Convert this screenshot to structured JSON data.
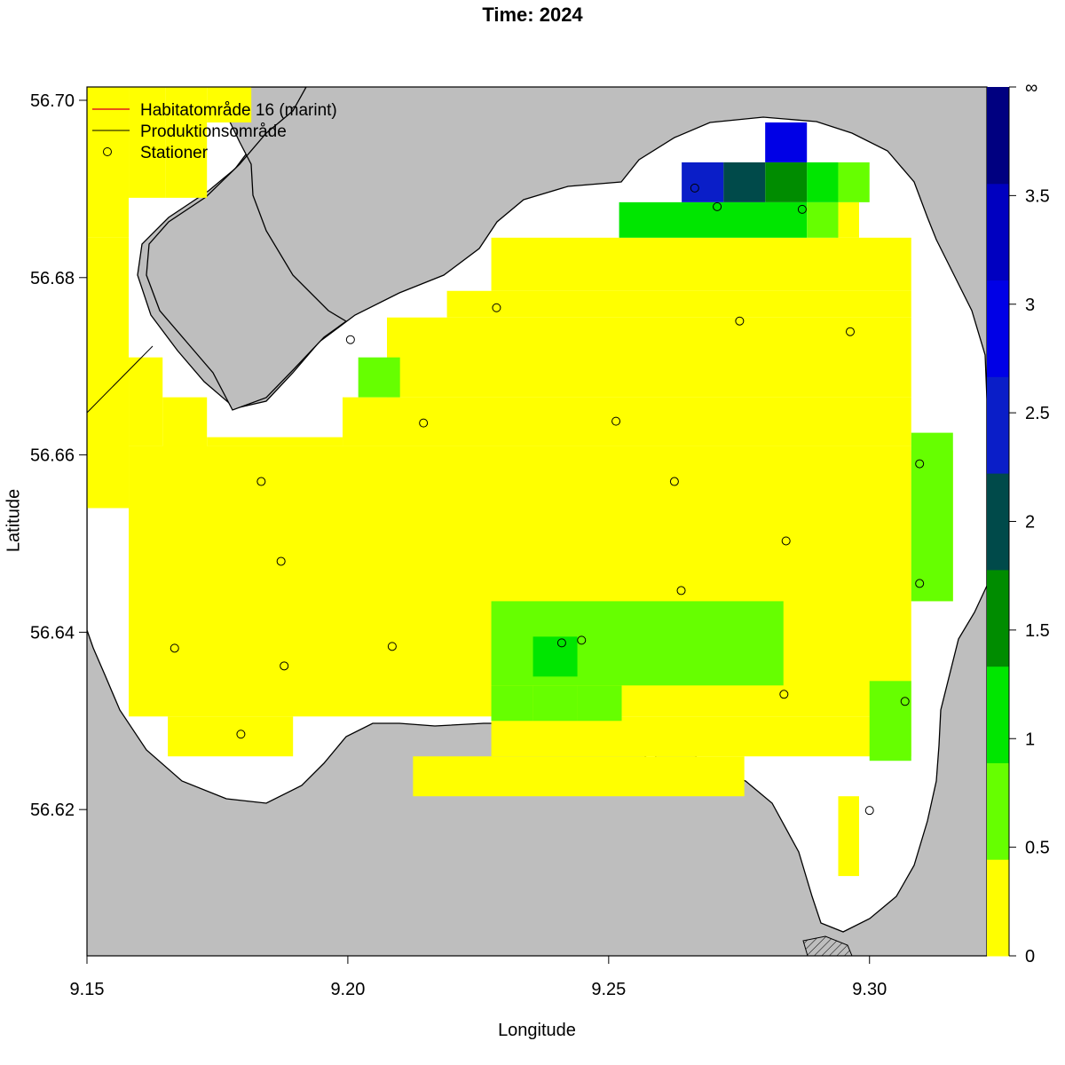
{
  "title": "Time: 2024",
  "axes": {
    "xlabel": "Longitude",
    "ylabel": "Latitude",
    "x_ticks": [
      "9.15",
      "9.20",
      "9.25",
      "9.30"
    ],
    "y_ticks": [
      "56.62",
      "56.64",
      "56.66",
      "56.68",
      "56.70"
    ],
    "xlim": [
      9.15,
      9.3225
    ],
    "ylim": [
      56.6035,
      56.7015
    ]
  },
  "legend": {
    "items": [
      {
        "label": "Habitatområde 16 (marint)",
        "color": "#e31a1c",
        "symbol": "line"
      },
      {
        "label": "Produktionsområde",
        "color": "#000000",
        "symbol": "line"
      },
      {
        "label": "Stationer",
        "color": "#000000",
        "symbol": "circle"
      }
    ]
  },
  "colorbar": {
    "labels": [
      "0",
      "0.5",
      "1",
      "1.5",
      "2",
      "2.5",
      "3",
      "3.5",
      "∞"
    ],
    "colors": [
      "#ffff00",
      "#66ff00",
      "#00e600",
      "#008c00",
      "#004a4a",
      "#0a1ec8",
      "#0000e6",
      "#0000c0",
      "#000080"
    ]
  },
  "colors": {
    "land": "#bebebe",
    "water": "#ffffff",
    "level_0": "#ffff00",
    "level_1": "#66ff00",
    "level_2": "#00e600",
    "level_3": "#008c00",
    "level_4": "#004a4a",
    "level_5": "#0a1ec8",
    "level_6": "#0000e6"
  },
  "chart_data": {
    "type": "heatmap",
    "title": "Time: 2024",
    "xlabel": "Longitude",
    "ylabel": "Latitude",
    "xlim": [
      9.15,
      9.3225
    ],
    "ylim": [
      56.6035,
      56.7015
    ],
    "value_breaks": [
      0,
      0.5,
      1,
      1.5,
      2,
      2.5,
      3,
      3.5,
      "∞"
    ],
    "grid_cells": [
      {
        "lon": [
          9.15,
          9.158
        ],
        "lat": [
          56.6845,
          56.7015
        ],
        "level": 0
      },
      {
        "lon": [
          9.158,
          9.165
        ],
        "lat": [
          56.689,
          56.7015
        ],
        "level": 0
      },
      {
        "lon": [
          9.165,
          9.173
        ],
        "lat": [
          56.689,
          56.7015
        ],
        "level": 0
      },
      {
        "lon": [
          9.173,
          9.1815
        ],
        "lat": [
          56.6975,
          56.7015
        ],
        "level": 0
      },
      {
        "lon": [
          9.15,
          9.158
        ],
        "lat": [
          56.654,
          56.6845
        ],
        "level": 0
      },
      {
        "lon": [
          9.158,
          9.1645
        ],
        "lat": [
          56.661,
          56.671
        ],
        "level": 0
      },
      {
        "lon": [
          9.1645,
          9.173
        ],
        "lat": [
          56.659,
          56.6665
        ],
        "level": 0
      },
      {
        "lon": [
          9.158,
          9.308
        ],
        "lat": [
          56.6305,
          56.661
        ],
        "level": 0
      },
      {
        "lon": [
          9.173,
          9.199
        ],
        "lat": [
          56.661,
          56.662
        ],
        "level": 0
      },
      {
        "lon": [
          9.199,
          9.308
        ],
        "lat": [
          56.661,
          56.6665
        ],
        "level": 0
      },
      {
        "lon": [
          9.2075,
          9.308
        ],
        "lat": [
          56.6665,
          56.6755
        ],
        "level": 0
      },
      {
        "lon": [
          9.219,
          9.308
        ],
        "lat": [
          56.6755,
          56.6785
        ],
        "level": 0
      },
      {
        "lon": [
          9.2275,
          9.308
        ],
        "lat": [
          56.6785,
          56.6845
        ],
        "level": 0
      },
      {
        "lon": [
          9.2935,
          9.298
        ],
        "lat": [
          56.6845,
          56.6885
        ],
        "level": 0
      },
      {
        "lon": [
          9.308,
          9.316
        ],
        "lat": [
          56.6435,
          56.6605
        ],
        "level": 0
      },
      {
        "lon": [
          9.1655,
          9.1895
        ],
        "lat": [
          56.626,
          56.6305
        ],
        "level": 0
      },
      {
        "lon": [
          9.2275,
          9.308
        ],
        "lat": [
          56.626,
          56.6305
        ],
        "level": 0
      },
      {
        "lon": [
          9.2125,
          9.276
        ],
        "lat": [
          56.6215,
          56.626
        ],
        "level": 0
      },
      {
        "lon": [
          9.294,
          9.298
        ],
        "lat": [
          56.6125,
          56.6215
        ],
        "level": 0
      },
      {
        "lon": [
          9.2275,
          9.2835
        ],
        "lat": [
          56.634,
          56.6435
        ],
        "level": 1
      },
      {
        "lon": [
          9.2275,
          9.2355
        ],
        "lat": [
          56.63,
          56.634
        ],
        "level": 1
      },
      {
        "lon": [
          9.2355,
          9.244
        ],
        "lat": [
          56.63,
          56.634
        ],
        "level": 1
      },
      {
        "lon": [
          9.244,
          9.2525
        ],
        "lat": [
          56.63,
          56.634
        ],
        "level": 1
      },
      {
        "lon": [
          9.2355,
          9.244
        ],
        "lat": [
          56.635,
          56.6395
        ],
        "level": 2
      },
      {
        "lon": [
          9.308,
          9.316
        ],
        "lat": [
          56.6435,
          56.6625
        ],
        "level": 1
      },
      {
        "lon": [
          9.3,
          9.308
        ],
        "lat": [
          56.6255,
          56.6345
        ],
        "level": 1
      },
      {
        "lon": [
          9.202,
          9.21
        ],
        "lat": [
          56.6665,
          56.671
        ],
        "level": 1
      },
      {
        "lon": [
          9.252,
          9.288
        ],
        "lat": [
          56.6845,
          56.6885
        ],
        "level": 2
      },
      {
        "lon": [
          9.288,
          9.294
        ],
        "lat": [
          56.6845,
          56.6885
        ],
        "level": 1
      },
      {
        "lon": [
          9.288,
          9.294
        ],
        "lat": [
          56.6885,
          56.693
        ],
        "level": 2
      },
      {
        "lon": [
          9.294,
          9.3
        ],
        "lat": [
          56.6885,
          56.693
        ],
        "level": 1
      },
      {
        "lon": [
          9.28,
          9.288
        ],
        "lat": [
          56.6885,
          56.693
        ],
        "level": 3
      },
      {
        "lon": [
          9.272,
          9.28
        ],
        "lat": [
          56.6885,
          56.693
        ],
        "level": 4
      },
      {
        "lon": [
          9.264,
          9.272
        ],
        "lat": [
          56.6885,
          56.693
        ],
        "level": 5
      },
      {
        "lon": [
          9.28,
          9.288
        ],
        "lat": [
          56.693,
          56.6975
        ],
        "level": 6
      }
    ],
    "stations": [
      {
        "lon": 9.2665,
        "lat": 56.6901
      },
      {
        "lon": 9.2708,
        "lat": 56.688
      },
      {
        "lon": 9.2871,
        "lat": 56.6877
      },
      {
        "lon": 9.2285,
        "lat": 56.6766
      },
      {
        "lon": 9.2751,
        "lat": 56.6751
      },
      {
        "lon": 9.2963,
        "lat": 56.6739
      },
      {
        "lon": 9.2005,
        "lat": 56.673
      },
      {
        "lon": 9.2145,
        "lat": 56.6636
      },
      {
        "lon": 9.2514,
        "lat": 56.6638
      },
      {
        "lon": 9.3096,
        "lat": 56.659
      },
      {
        "lon": 9.1834,
        "lat": 56.657
      },
      {
        "lon": 9.2626,
        "lat": 56.657
      },
      {
        "lon": 9.284,
        "lat": 56.6503
      },
      {
        "lon": 9.1872,
        "lat": 56.648
      },
      {
        "lon": 9.3096,
        "lat": 56.6455
      },
      {
        "lon": 9.2639,
        "lat": 56.6447
      },
      {
        "lon": 9.241,
        "lat": 56.6388
      },
      {
        "lon": 9.2448,
        "lat": 56.6391
      },
      {
        "lon": 9.1668,
        "lat": 56.6382
      },
      {
        "lon": 9.2085,
        "lat": 56.6384
      },
      {
        "lon": 9.1878,
        "lat": 56.6362
      },
      {
        "lon": 9.2836,
        "lat": 56.633
      },
      {
        "lon": 9.3068,
        "lat": 56.6322
      },
      {
        "lon": 9.1795,
        "lat": 56.6285
      },
      {
        "lon": 9.3,
        "lat": 56.6199
      }
    ]
  }
}
